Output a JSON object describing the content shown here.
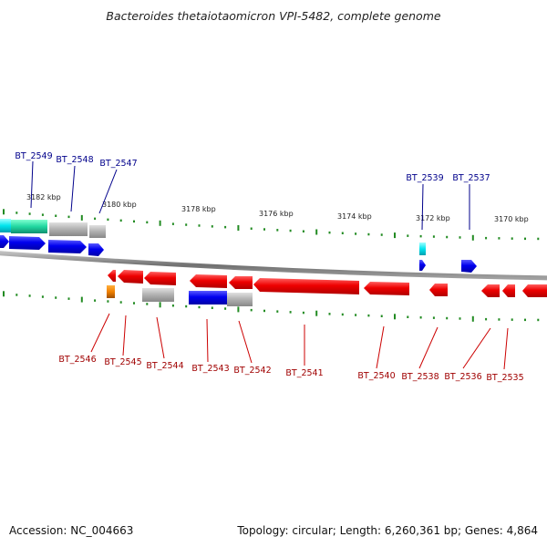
{
  "title": "Bacteroides thetaiotaomicron VPI-5482, complete genome",
  "footer": {
    "accession": "Accession: NC_004663",
    "summary": "Topology: circular; Length: 6,260,361 bp; Genes: 4,864"
  },
  "colors": {
    "forward_gene": "#0000ee",
    "reverse_gene": "#ee0000",
    "pseudogene": "#a9a9a9",
    "rna": "#00e5ee",
    "highlight_teal": "#20d7a0",
    "orange": "#f08000",
    "backbone": "#808080",
    "tick": "#228b22",
    "top_label": "#00008b",
    "bottom_label": "#a00000"
  },
  "scale_labels": [
    "3182 kbp",
    "3180 kbp",
    "3178 kbp",
    "3176 kbp",
    "3174 kbp",
    "3172 kbp",
    "3170 kbp"
  ],
  "top_genes": [
    "BT_2549",
    "BT_2548",
    "BT_2547",
    "BT_2539",
    "BT_2537"
  ],
  "bottom_genes": [
    "BT_2546",
    "BT_2545",
    "BT_2544",
    "BT_2543",
    "BT_2542",
    "BT_2541",
    "BT_2540",
    "BT_2538",
    "BT_2536",
    "BT_2535"
  ]
}
